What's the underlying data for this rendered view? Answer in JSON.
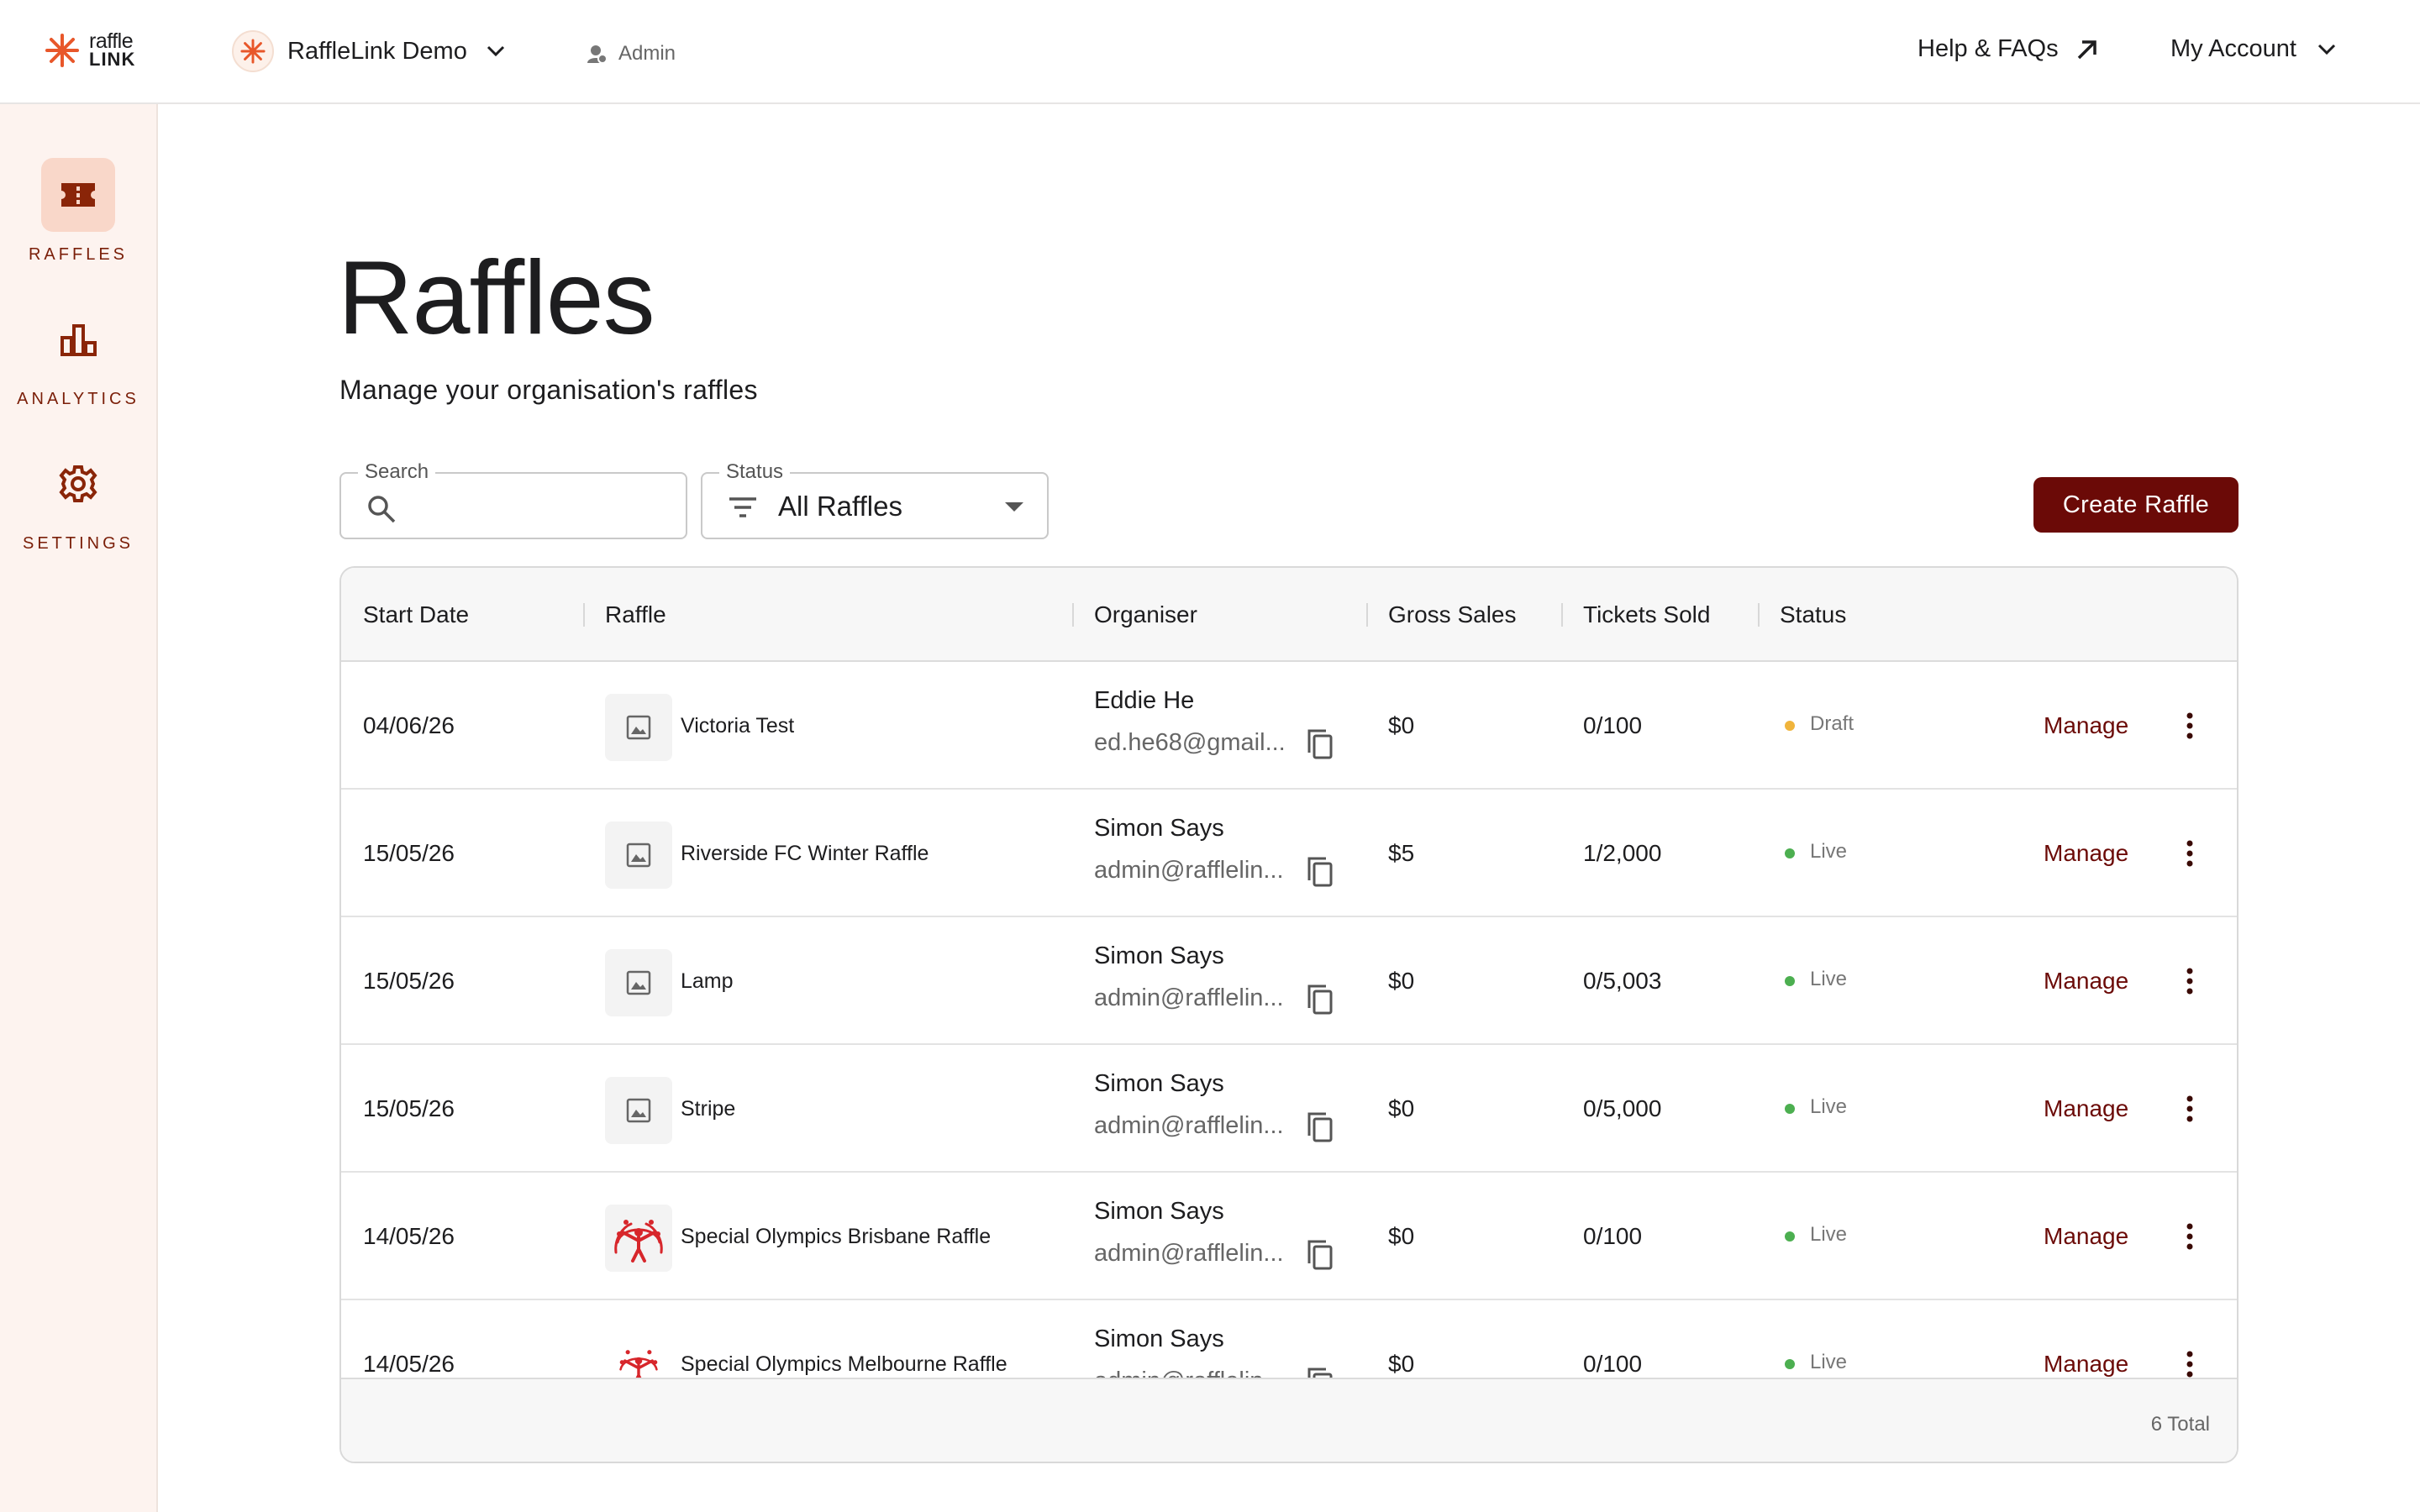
{
  "app": {
    "logo_line1": "raffle",
    "logo_line2": "LINK",
    "org_name": "RaffleLink Demo",
    "role": "Admin",
    "help_label": "Help & FAQs",
    "account_label": "My Account"
  },
  "sidebar": {
    "items": [
      {
        "label": "RAFFLES",
        "icon": "ticket-icon",
        "active": true
      },
      {
        "label": "ANALYTICS",
        "icon": "bar-chart-icon",
        "active": false
      },
      {
        "label": "SETTINGS",
        "icon": "gear-icon",
        "active": false
      }
    ]
  },
  "main": {
    "title": "Raffles",
    "subtitle": "Manage your organisation's raffles",
    "search": {
      "label": "Search",
      "value": "",
      "placeholder": ""
    },
    "status_filter": {
      "label": "Status",
      "value": "All Raffles"
    },
    "create_label": "Create Raffle"
  },
  "table": {
    "columns": [
      "Start Date",
      "Raffle",
      "Organiser",
      "Gross Sales",
      "Tickets Sold",
      "Status"
    ],
    "rows": [
      {
        "date": "04/06/26",
        "raffle": "Victoria Test",
        "image": "placeholder",
        "organiser": "Eddie He",
        "email": "ed.he68@gmail...",
        "gross": "$0",
        "sold": "0/100",
        "status": "Draft",
        "manage": "Manage"
      },
      {
        "date": "15/05/26",
        "raffle": "Riverside FC Winter Raffle",
        "image": "placeholder",
        "organiser": "Simon Says",
        "email": "admin@rafflelin...",
        "gross": "$5",
        "sold": "1/2,000",
        "status": "Live",
        "manage": "Manage"
      },
      {
        "date": "15/05/26",
        "raffle": "Lamp",
        "image": "placeholder",
        "organiser": "Simon Says",
        "email": "admin@rafflelin...",
        "gross": "$0",
        "sold": "0/5,003",
        "status": "Live",
        "manage": "Manage"
      },
      {
        "date": "15/05/26",
        "raffle": "Stripe",
        "image": "placeholder",
        "organiser": "Simon Says",
        "email": "admin@rafflelin...",
        "gross": "$0",
        "sold": "0/5,000",
        "status": "Live",
        "manage": "Manage"
      },
      {
        "date": "14/05/26",
        "raffle": "Special Olympics Brisbane Raffle",
        "image": "logo",
        "organiser": "Simon Says",
        "email": "admin@rafflelin...",
        "gross": "$0",
        "sold": "0/100",
        "status": "Live",
        "manage": "Manage"
      },
      {
        "date": "14/05/26",
        "raffle": "Special Olympics Melbourne Raffle",
        "image": "logo",
        "organiser": "Simon Says",
        "email": "admin@rafflelin...",
        "gross": "$0",
        "sold": "0/100",
        "status": "Live",
        "manage": "Manage"
      }
    ],
    "total_label": "6 Total"
  },
  "colors": {
    "brand": "#6b0a07",
    "accent_orange": "#e8572a",
    "draft": "#f0b43c",
    "live": "#4caf50",
    "sidebar_bg": "#fdf3ef"
  }
}
